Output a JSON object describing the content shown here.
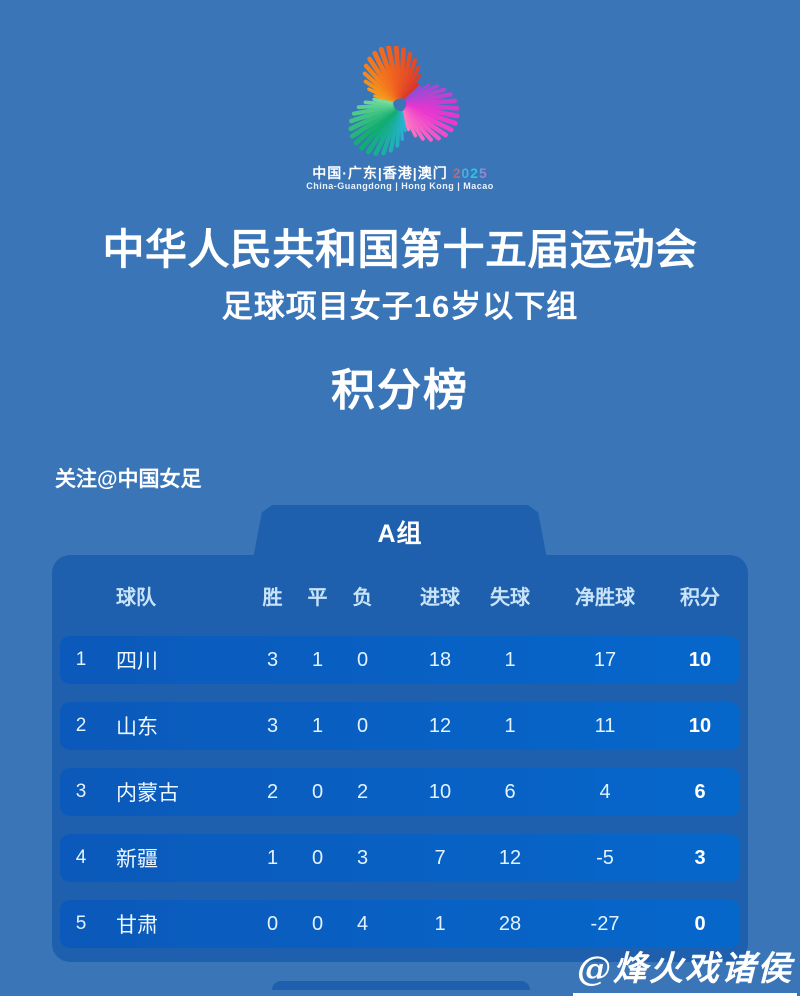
{
  "logo": {
    "cn_line": "中国·广东|香港|澳门",
    "year": "2025",
    "en_line": "China-Guangdong | Hong Kong | Macao",
    "flower_groups": [
      {
        "start": -75,
        "colors": [
          "#f7a21b",
          "#f1641f",
          "#d8342a"
        ]
      },
      {
        "start": 45,
        "colors": [
          "#8a4fd6",
          "#e935cf",
          "#ff7cc0"
        ]
      },
      {
        "start": 165,
        "colors": [
          "#2bb3e2",
          "#0fac6e",
          "#7ddfa0"
        ]
      }
    ]
  },
  "header": {
    "title": "中华人民共和国第十五届运动会",
    "subtitle": "足球项目女子16岁以下组",
    "section_title": "积分榜",
    "follow": "关注@中国女足"
  },
  "group_tab": {
    "label": "A组"
  },
  "chart_data": {
    "type": "table",
    "title": "积分榜",
    "group": "A组",
    "columns": [
      "球队",
      "胜",
      "平",
      "负",
      "进球",
      "失球",
      "净胜球",
      "积分"
    ],
    "rows": [
      {
        "rank": 1,
        "team": "四川",
        "w": 3,
        "d": 1,
        "l": 0,
        "gf": 18,
        "ga": 1,
        "gd": 17,
        "pts": 10
      },
      {
        "rank": 2,
        "team": "山东",
        "w": 3,
        "d": 1,
        "l": 0,
        "gf": 12,
        "ga": 1,
        "gd": 11,
        "pts": 10
      },
      {
        "rank": 3,
        "team": "内蒙古",
        "w": 2,
        "d": 0,
        "l": 2,
        "gf": 10,
        "ga": 6,
        "gd": 4,
        "pts": 6
      },
      {
        "rank": 4,
        "team": "新疆",
        "w": 1,
        "d": 0,
        "l": 3,
        "gf": 7,
        "ga": 12,
        "gd": -5,
        "pts": 3
      },
      {
        "rank": 5,
        "team": "甘肃",
        "w": 0,
        "d": 0,
        "l": 4,
        "gf": 1,
        "ga": 28,
        "gd": -27,
        "pts": 0
      }
    ]
  },
  "watermark": "@烽火戏诸侯",
  "colors": {
    "background": "#3a75b8",
    "panel": "#1e5fae",
    "row": "#0760c4",
    "header_text": "#c9e4f8",
    "row_text": "#e2f3ff",
    "white": "#ffffff"
  }
}
